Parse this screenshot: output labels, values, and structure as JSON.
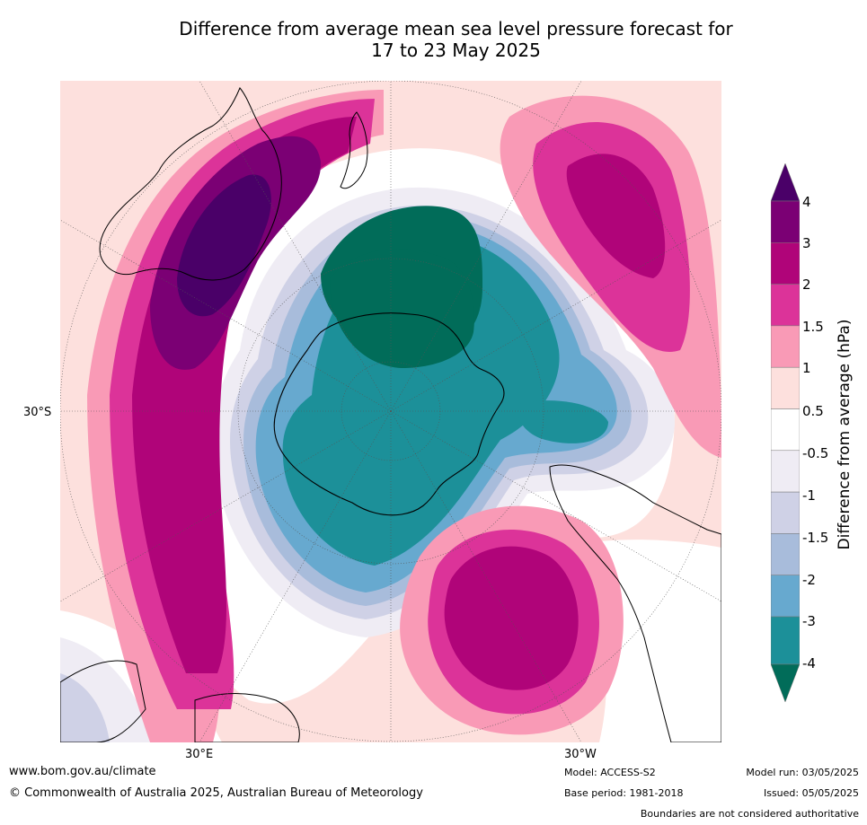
{
  "title_line1": "Difference from average mean sea level pressure forecast for",
  "title_line2": "17 to 23 May 2025",
  "axis_labels": {
    "lat_30s": "30°S",
    "lon_30e": "30°E",
    "lon_30w": "30°W"
  },
  "colorbar": {
    "title": "Difference from average (hPa)",
    "ticks": [
      "4",
      "3",
      "2",
      "1.5",
      "1",
      "0.5",
      "-0.5",
      "-1",
      "-1.5",
      "-2",
      "-3",
      "-4"
    ],
    "colors": {
      "gt4": "#4a0068",
      "3_4": "#7b0074",
      "2_3": "#b00479",
      "1.5_2": "#dc3399",
      "1_1.5": "#f99ab6",
      "0.5_1": "#fde0dd",
      "n0.5_0.5": "#ffffff",
      "n1_n0.5": "#efecf4",
      "n1.5_n1": "#cfd1e6",
      "n2_n1.5": "#a8bcdb",
      "n3_n2": "#67a9cf",
      "n4_n3": "#1c9099",
      "lt_n4": "#016c59"
    }
  },
  "footer": {
    "website": "www.bom.gov.au/climate",
    "copyright": "© Commonwealth of Australia 2025, Australian Bureau of Meteorology",
    "model": "Model: ACCESS-S2",
    "base_period": "Base period: 1981-2018",
    "model_run": "Model run: 03/05/2025",
    "issued": "Issued: 05/05/2025",
    "disclaimer": "Boundaries are not considered authoritative"
  }
}
